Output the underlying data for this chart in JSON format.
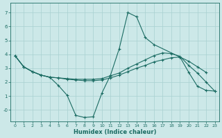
{
  "xlabel": "Humidex (Indice chaleur)",
  "bg_color": "#cce8e8",
  "grid_color": "#a8d0d0",
  "line_color": "#1a6b62",
  "xlim": [
    -0.5,
    23.5
  ],
  "ylim": [
    -0.85,
    7.7
  ],
  "xticks": [
    0,
    1,
    2,
    3,
    4,
    5,
    6,
    7,
    8,
    9,
    10,
    11,
    12,
    13,
    14,
    15,
    16,
    17,
    18,
    19,
    20,
    21,
    22,
    23
  ],
  "yticks": [
    0,
    1,
    2,
    3,
    4,
    5,
    6,
    7
  ],
  "ytick_labels": [
    "-0",
    "1",
    "2",
    "3",
    "4",
    "5",
    "6",
    "7"
  ],
  "line1_x": [
    0,
    1,
    2,
    3,
    4,
    5,
    6,
    7,
    8,
    9,
    10,
    11,
    12,
    13,
    14,
    15,
    16,
    19,
    20,
    21,
    22,
    23
  ],
  "line1_y": [
    3.9,
    3.1,
    2.75,
    2.5,
    2.35,
    1.75,
    1.05,
    -0.4,
    -0.55,
    -0.5,
    1.2,
    2.5,
    4.4,
    7.0,
    6.7,
    5.2,
    4.7,
    3.8,
    2.7,
    1.7,
    1.4,
    1.35
  ],
  "line2_x": [
    0,
    1,
    2,
    3,
    4,
    5,
    6,
    7,
    8,
    9,
    10,
    11,
    12,
    13,
    14,
    15,
    16,
    17,
    18,
    19,
    20,
    21,
    22
  ],
  "line2_y": [
    3.9,
    3.1,
    2.75,
    2.5,
    2.35,
    2.3,
    2.2,
    2.15,
    2.1,
    2.1,
    2.15,
    2.3,
    2.5,
    2.75,
    3.0,
    3.2,
    3.45,
    3.6,
    3.75,
    3.8,
    3.5,
    3.1,
    2.7
  ],
  "line3_x": [
    0,
    1,
    2,
    3,
    4,
    5,
    6,
    7,
    8,
    9,
    10,
    11,
    12,
    13,
    14,
    15,
    16,
    17,
    18,
    19,
    20,
    21,
    22,
    23
  ],
  "line3_y": [
    3.9,
    3.1,
    2.75,
    2.5,
    2.35,
    2.3,
    2.25,
    2.2,
    2.2,
    2.2,
    2.25,
    2.45,
    2.65,
    3.0,
    3.3,
    3.6,
    3.9,
    4.1,
    4.05,
    3.85,
    3.2,
    2.65,
    2.0,
    1.35
  ]
}
